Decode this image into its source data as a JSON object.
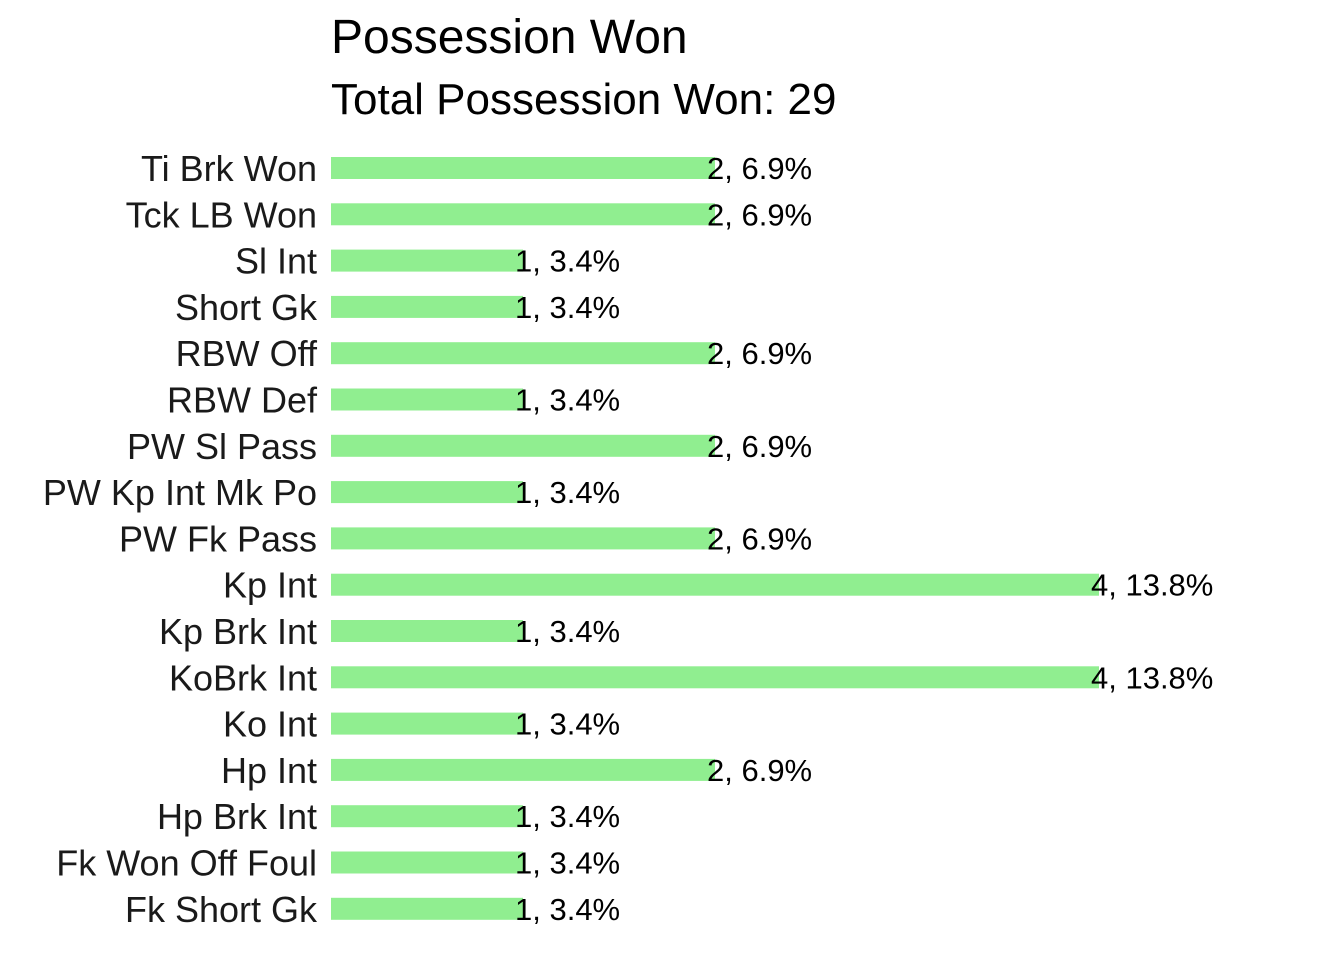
{
  "chart_data": {
    "type": "bar",
    "orientation": "horizontal",
    "title": "Possession Won",
    "subtitle": "Total Possession Won: 29",
    "xlabel": "",
    "ylabel": "",
    "grid": false,
    "legend": "none",
    "bar_color": "#90EE90",
    "categories": [
      "Ti Brk Won",
      "Tck LB Won",
      "Sl Int",
      "Short Gk",
      "RBW Off",
      "RBW Def",
      "PW Sl Pass",
      "PW Kp Int Mk Po",
      "PW Fk Pass",
      "Kp Int",
      "Kp Brk Int",
      "KoBrk Int",
      "Ko Int",
      "Hp Int",
      "Hp Brk Int",
      "Fk Won Off Foul",
      "Fk Short Gk"
    ],
    "values": [
      2,
      2,
      1,
      1,
      2,
      1,
      2,
      1,
      2,
      4,
      1,
      4,
      1,
      2,
      1,
      1,
      1
    ],
    "data_labels": [
      "2, 6.9%",
      "2, 6.9%",
      "1, 3.4%",
      "1, 3.4%",
      "2, 6.9%",
      "1, 3.4%",
      "2, 6.9%",
      "1, 3.4%",
      "2, 6.9%",
      "4, 13.8%",
      "1, 3.4%",
      "4, 13.8%",
      "1, 3.4%",
      "2, 6.9%",
      "1, 3.4%",
      "1, 3.4%",
      "1, 3.4%"
    ],
    "xlim": [
      0,
      4
    ]
  }
}
